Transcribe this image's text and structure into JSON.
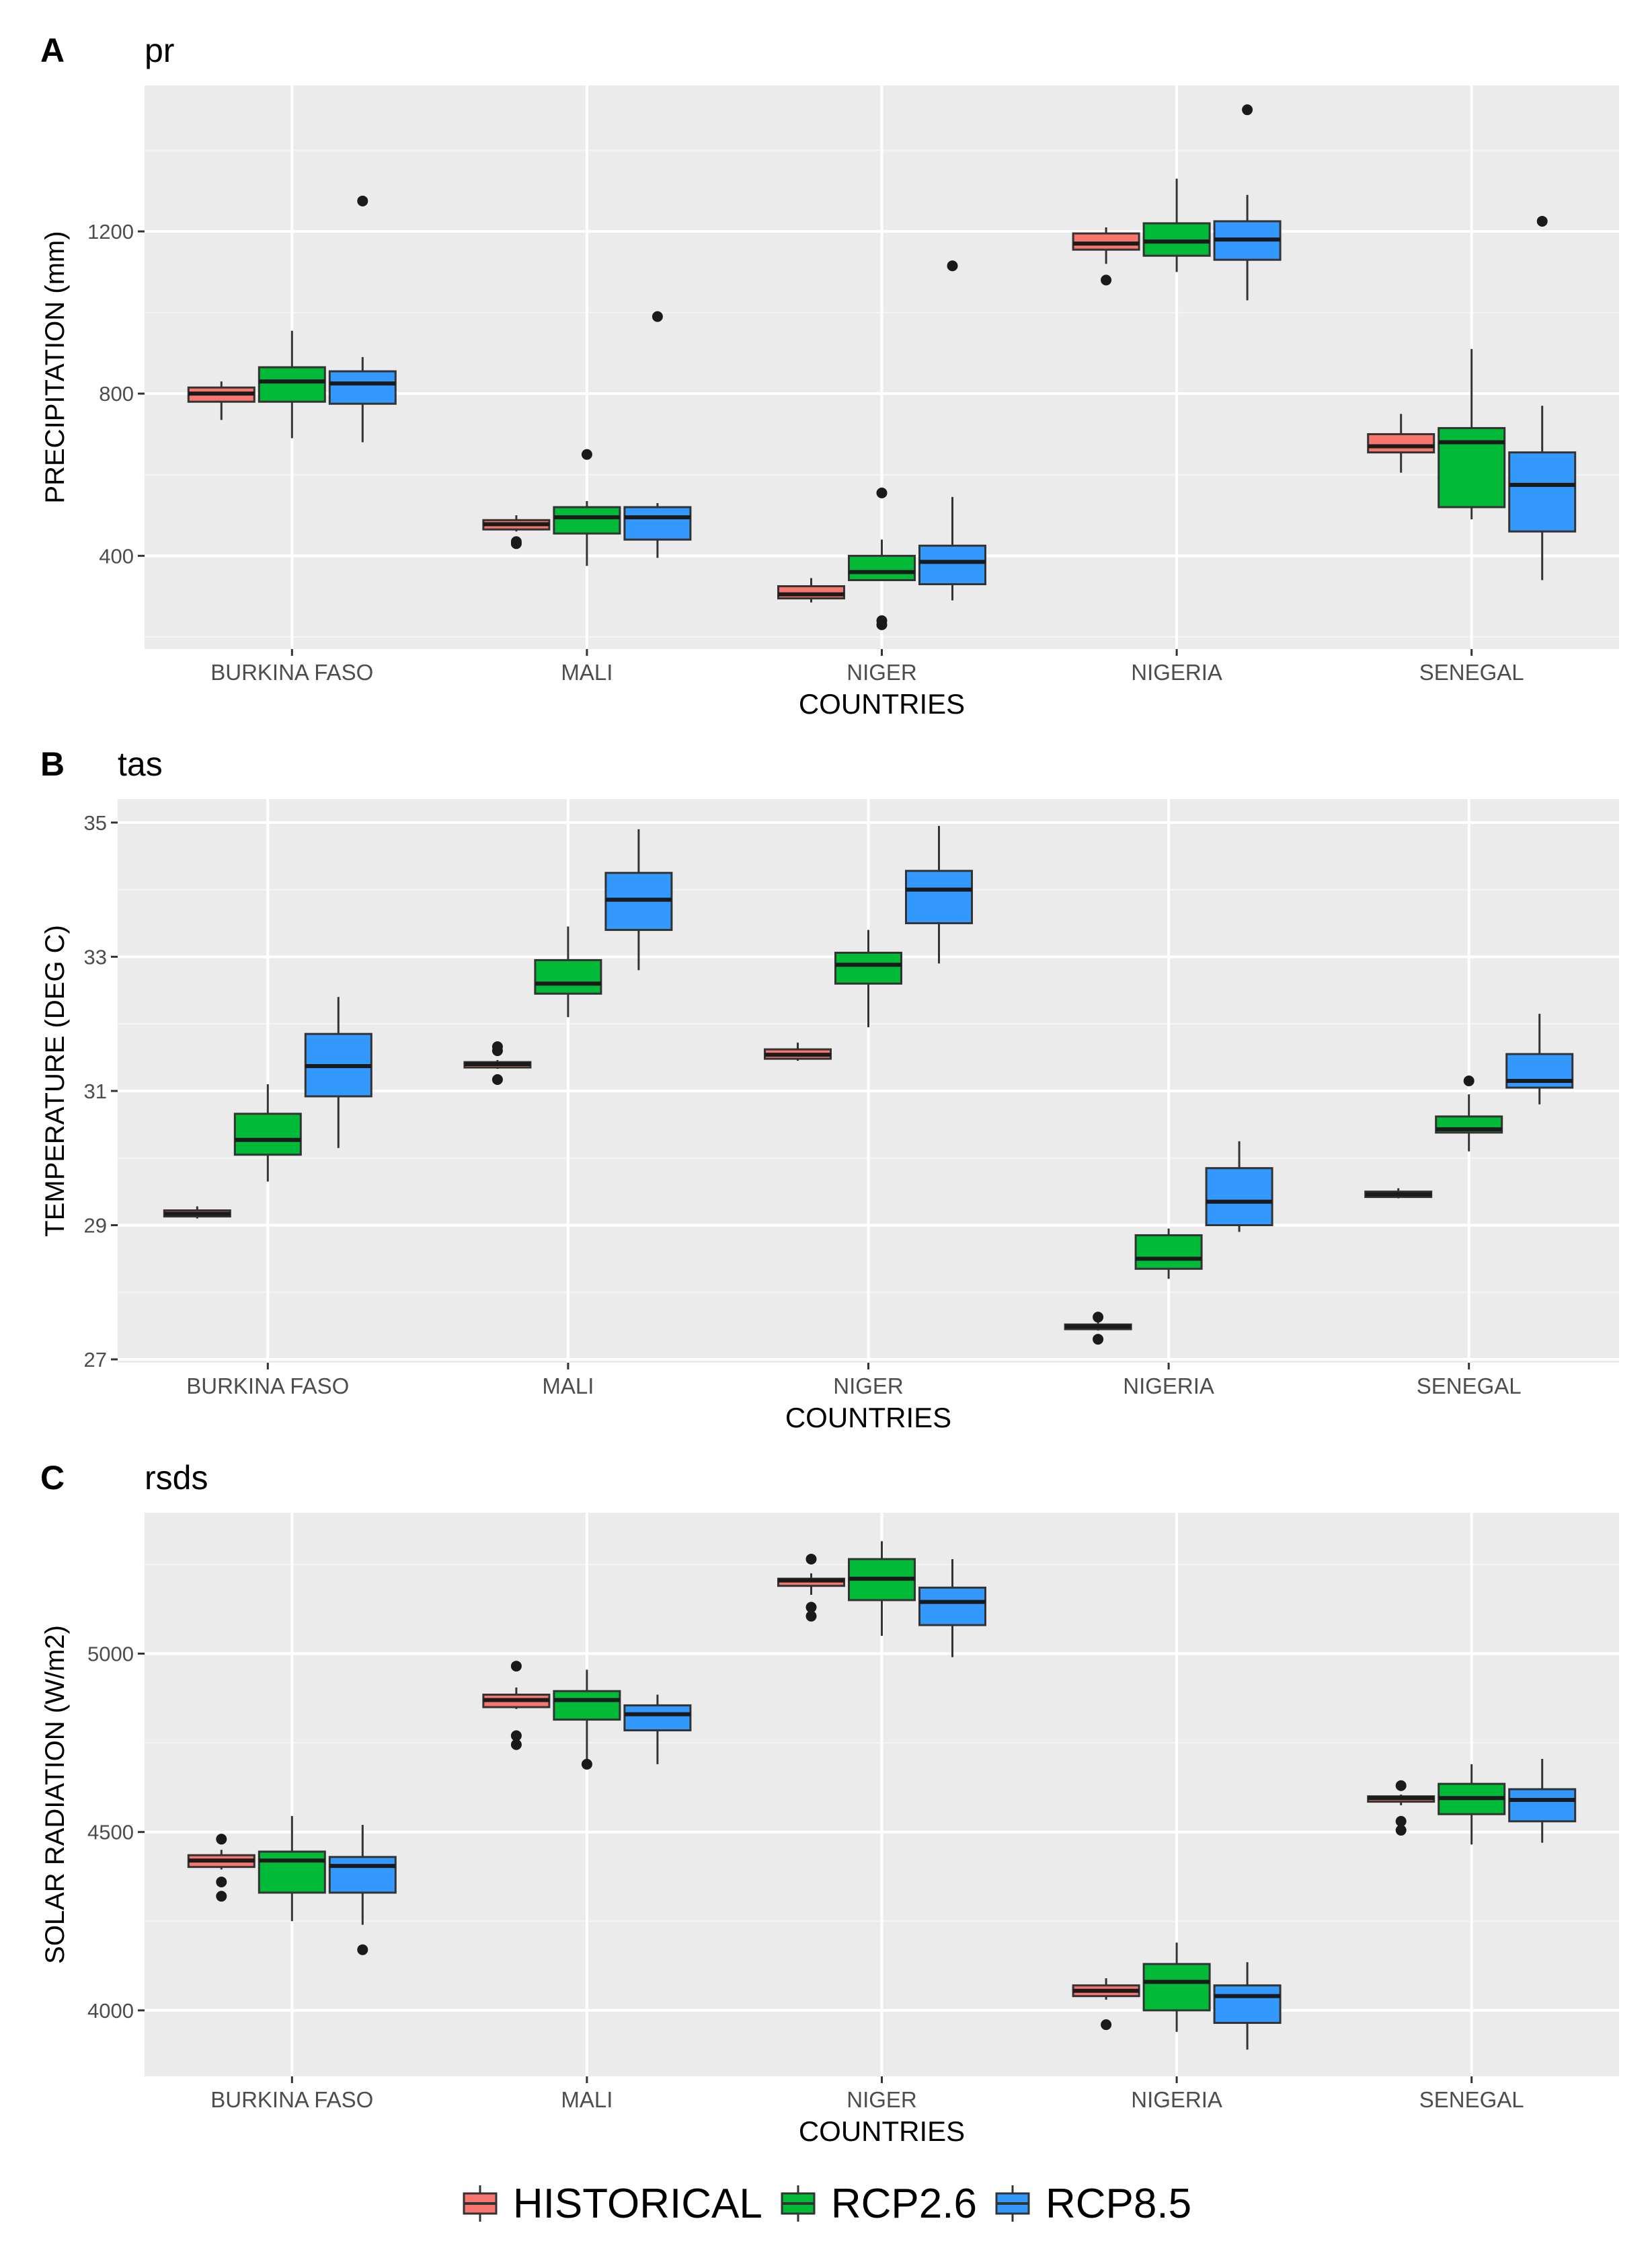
{
  "legend": [
    {
      "label": "HISTORICAL",
      "color": "#F8766D"
    },
    {
      "label": "RCP2.6",
      "color": "#00BA38"
    },
    {
      "label": "RCP8.5",
      "color": "#3399FF"
    }
  ],
  "chart_data": [
    {
      "type": "box",
      "panel_letter": "A",
      "title": "pr",
      "xlabel": "COUNTRIES",
      "ylabel": "PRECIPITATION (mm)",
      "ylim": [
        170,
        1560
      ],
      "yticks": [
        400,
        800,
        1200
      ],
      "categories": [
        "BURKINA FASO",
        "MALI",
        "NIGER",
        "NIGERIA",
        "SENEGAL"
      ],
      "series": [
        {
          "name": "HISTORICAL",
          "boxes": [
            {
              "whisker_low": 735,
              "q1": 780,
              "median": 800,
              "q3": 815,
              "whisker_high": 830,
              "outliers": []
            },
            {
              "whisker_low": 460,
              "q1": 465,
              "median": 478,
              "q3": 488,
              "whisker_high": 500,
              "outliers": [
                430,
                435
              ]
            },
            {
              "whisker_low": 285,
              "q1": 295,
              "median": 305,
              "q3": 325,
              "whisker_high": 345,
              "outliers": []
            },
            {
              "whisker_low": 1120,
              "q1": 1155,
              "median": 1170,
              "q3": 1195,
              "whisker_high": 1210,
              "outliers": [
                1080
              ]
            },
            {
              "whisker_low": 605,
              "q1": 655,
              "median": 670,
              "q3": 700,
              "whisker_high": 750,
              "outliers": []
            }
          ]
        },
        {
          "name": "RCP2.6",
          "boxes": [
            {
              "whisker_low": 690,
              "q1": 780,
              "median": 830,
              "q3": 865,
              "whisker_high": 955,
              "outliers": []
            },
            {
              "whisker_low": 375,
              "q1": 455,
              "median": 495,
              "q3": 520,
              "whisker_high": 535,
              "outliers": [
                650
              ]
            },
            {
              "whisker_low": 340,
              "q1": 340,
              "median": 360,
              "q3": 400,
              "whisker_high": 440,
              "outliers": [
                555,
                240,
                230
              ]
            },
            {
              "whisker_low": 1100,
              "q1": 1140,
              "median": 1175,
              "q3": 1220,
              "whisker_high": 1330,
              "outliers": []
            },
            {
              "whisker_low": 490,
              "q1": 520,
              "median": 680,
              "q3": 715,
              "whisker_high": 910,
              "outliers": []
            }
          ]
        },
        {
          "name": "RCP8.5",
          "boxes": [
            {
              "whisker_low": 680,
              "q1": 775,
              "median": 825,
              "q3": 855,
              "whisker_high": 890,
              "outliers": [
                1275
              ]
            },
            {
              "whisker_low": 395,
              "q1": 440,
              "median": 495,
              "q3": 520,
              "whisker_high": 530,
              "outliers": [
                990
              ]
            },
            {
              "whisker_low": 290,
              "q1": 330,
              "median": 385,
              "q3": 425,
              "whisker_high": 545,
              "outliers": [
                1115
              ]
            },
            {
              "whisker_low": 1030,
              "q1": 1130,
              "median": 1180,
              "q3": 1225,
              "whisker_high": 1290,
              "outliers": [
                1500
              ]
            },
            {
              "whisker_low": 340,
              "q1": 460,
              "median": 575,
              "q3": 655,
              "whisker_high": 770,
              "outliers": [
                1225
              ]
            }
          ]
        }
      ]
    },
    {
      "type": "box",
      "panel_letter": "B",
      "title": "tas",
      "xlabel": "COUNTRIES",
      "ylabel": "TEMPERATURE (DEG C)",
      "ylim": [
        26.95,
        35.35
      ],
      "yticks": [
        27,
        29,
        31,
        33,
        35
      ],
      "categories": [
        "BURKINA FASO",
        "MALI",
        "NIGER",
        "NIGERIA",
        "SENEGAL"
      ],
      "series": [
        {
          "name": "HISTORICAL",
          "boxes": [
            {
              "whisker_low": 29.1,
              "q1": 29.13,
              "median": 29.17,
              "q3": 29.22,
              "whisker_high": 29.28,
              "outliers": []
            },
            {
              "whisker_low": 31.33,
              "q1": 31.35,
              "median": 31.4,
              "q3": 31.43,
              "whisker_high": 31.46,
              "outliers": [
                31.6,
                31.66,
                31.17
              ]
            },
            {
              "whisker_low": 31.45,
              "q1": 31.48,
              "median": 31.54,
              "q3": 31.62,
              "whisker_high": 31.72,
              "outliers": []
            },
            {
              "whisker_low": 27.43,
              "q1": 27.45,
              "median": 27.49,
              "q3": 27.52,
              "whisker_high": 27.55,
              "outliers": [
                27.63,
                27.3
              ]
            },
            {
              "whisker_low": 29.4,
              "q1": 29.42,
              "median": 29.46,
              "q3": 29.5,
              "whisker_high": 29.55,
              "outliers": []
            }
          ]
        },
        {
          "name": "RCP2.6",
          "boxes": [
            {
              "whisker_low": 29.65,
              "q1": 30.05,
              "median": 30.27,
              "q3": 30.66,
              "whisker_high": 31.1,
              "outliers": []
            },
            {
              "whisker_low": 32.1,
              "q1": 32.45,
              "median": 32.6,
              "q3": 32.95,
              "whisker_high": 33.45,
              "outliers": []
            },
            {
              "whisker_low": 31.95,
              "q1": 32.6,
              "median": 32.88,
              "q3": 33.06,
              "whisker_high": 33.4,
              "outliers": []
            },
            {
              "whisker_low": 28.2,
              "q1": 28.35,
              "median": 28.5,
              "q3": 28.85,
              "whisker_high": 28.95,
              "outliers": []
            },
            {
              "whisker_low": 30.1,
              "q1": 30.38,
              "median": 30.43,
              "q3": 30.62,
              "whisker_high": 30.95,
              "outliers": [
                31.15
              ]
            }
          ]
        },
        {
          "name": "RCP8.5",
          "boxes": [
            {
              "whisker_low": 30.15,
              "q1": 30.92,
              "median": 31.37,
              "q3": 31.85,
              "whisker_high": 32.4,
              "outliers": []
            },
            {
              "whisker_low": 32.8,
              "q1": 33.4,
              "median": 33.85,
              "q3": 34.25,
              "whisker_high": 34.9,
              "outliers": []
            },
            {
              "whisker_low": 32.9,
              "q1": 33.5,
              "median": 34.0,
              "q3": 34.28,
              "whisker_high": 34.95,
              "outliers": []
            },
            {
              "whisker_low": 28.9,
              "q1": 29.0,
              "median": 29.35,
              "q3": 29.85,
              "whisker_high": 30.25,
              "outliers": []
            },
            {
              "whisker_low": 30.8,
              "q1": 31.05,
              "median": 31.15,
              "q3": 31.55,
              "whisker_high": 32.15,
              "outliers": []
            }
          ]
        }
      ]
    },
    {
      "type": "box",
      "panel_letter": "C",
      "title": "rsds",
      "xlabel": "COUNTRIES",
      "ylabel": "SOLAR RADIATION (W/m2)",
      "ylim": [
        3815,
        5395
      ],
      "yticks": [
        4000,
        4500,
        5000
      ],
      "categories": [
        "BURKINA FASO",
        "MALI",
        "NIGER",
        "NIGERIA",
        "SENEGAL"
      ],
      "series": [
        {
          "name": "HISTORICAL",
          "boxes": [
            {
              "whisker_low": 4395,
              "q1": 4402,
              "median": 4420,
              "q3": 4435,
              "whisker_high": 4450,
              "outliers": [
                4480,
                4360,
                4320
              ]
            },
            {
              "whisker_low": 4845,
              "q1": 4850,
              "median": 4870,
              "q3": 4885,
              "whisker_high": 4905,
              "outliers": [
                4965,
                4770,
                4745
              ]
            },
            {
              "whisker_low": 5165,
              "q1": 5190,
              "median": 5205,
              "q3": 5210,
              "whisker_high": 5225,
              "outliers": [
                5265,
                5130,
                5105
              ]
            },
            {
              "whisker_low": 4030,
              "q1": 4040,
              "median": 4055,
              "q3": 4070,
              "whisker_high": 4090,
              "outliers": [
                3960
              ]
            },
            {
              "whisker_low": 4575,
              "q1": 4585,
              "median": 4595,
              "q3": 4600,
              "whisker_high": 4605,
              "outliers": [
                4630,
                4530,
                4505
              ]
            }
          ]
        },
        {
          "name": "RCP2.6",
          "boxes": [
            {
              "whisker_low": 4250,
              "q1": 4330,
              "median": 4420,
              "q3": 4445,
              "whisker_high": 4545,
              "outliers": []
            },
            {
              "whisker_low": 4695,
              "q1": 4815,
              "median": 4870,
              "q3": 4895,
              "whisker_high": 4955,
              "outliers": [
                4690
              ]
            },
            {
              "whisker_low": 5050,
              "q1": 5150,
              "median": 5210,
              "q3": 5265,
              "whisker_high": 5315,
              "outliers": []
            },
            {
              "whisker_low": 3940,
              "q1": 4000,
              "median": 4080,
              "q3": 4130,
              "whisker_high": 4190,
              "outliers": []
            },
            {
              "whisker_low": 4465,
              "q1": 4550,
              "median": 4595,
              "q3": 4635,
              "whisker_high": 4690,
              "outliers": []
            }
          ]
        },
        {
          "name": "RCP8.5",
          "boxes": [
            {
              "whisker_low": 4240,
              "q1": 4330,
              "median": 4405,
              "q3": 4430,
              "whisker_high": 4520,
              "outliers": [
                4170
              ]
            },
            {
              "whisker_low": 4690,
              "q1": 4785,
              "median": 4830,
              "q3": 4855,
              "whisker_high": 4885,
              "outliers": []
            },
            {
              "whisker_low": 4990,
              "q1": 5080,
              "median": 5145,
              "q3": 5185,
              "whisker_high": 5265,
              "outliers": []
            },
            {
              "whisker_low": 3890,
              "q1": 3965,
              "median": 4040,
              "q3": 4070,
              "whisker_high": 4135,
              "outliers": []
            },
            {
              "whisker_low": 4470,
              "q1": 4530,
              "median": 4590,
              "q3": 4620,
              "whisker_high": 4705,
              "outliers": []
            }
          ]
        }
      ]
    }
  ]
}
